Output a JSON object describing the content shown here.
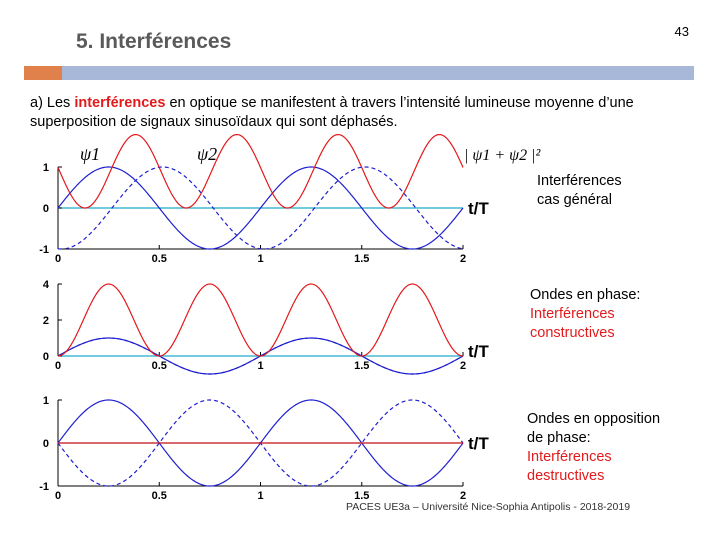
{
  "page_number": "43",
  "title": "5.   Interférences",
  "intro": {
    "prefix": "a)  Les ",
    "highlight": "interférences",
    "rest": " en optique se manifestent à travers l’intensité lumineuse moyenne d’une superposition de signaux sinusoïdaux qui sont déphasés."
  },
  "colors": {
    "wave": "#1f1fd0",
    "intensity": "#e31a1c",
    "zero_line": "#22aacc",
    "title_bar": "#a8b8d8",
    "title_accent": "#e0804a"
  },
  "chart_data": [
    {
      "type": "line",
      "x_label": "t/T",
      "xlim": [
        0,
        2
      ],
      "ylim": [
        -1,
        1
      ],
      "x_ticks": [
        "0",
        "0.5",
        "1",
        "1.5",
        "2"
      ],
      "y_ticks": [
        "-1",
        "0",
        "1"
      ],
      "series": [
        {
          "name": "ψ1",
          "formula": "sin(2πx)",
          "color": "#1f1fd0",
          "style": "solid"
        },
        {
          "name": "ψ2",
          "formula": "sin(2πx - 1.6π/3)",
          "color": "#1f1fd0",
          "style": "dashed"
        },
        {
          "name": "|ψ1+ψ2|²",
          "formula": "(sin(2πx)+sin(2πx-1.6π/3))^2",
          "color": "#e31a1c",
          "style": "solid"
        }
      ],
      "annotations": [
        "ψ1",
        "ψ2",
        "| ψ1 + ψ2 |²"
      ],
      "caption_lines": [
        "Interférences",
        "cas général"
      ]
    },
    {
      "type": "line",
      "x_label": "t/T",
      "xlim": [
        0,
        2
      ],
      "ylim": [
        0,
        4
      ],
      "x_ticks": [
        "0",
        "0.5",
        "1",
        "1.5",
        "2"
      ],
      "y_ticks": [
        "0",
        "2",
        "4"
      ],
      "series": [
        {
          "name": "ψ1",
          "formula": "sin(2πx)",
          "color": "#1f1fd0",
          "style": "solid"
        },
        {
          "name": "ψ2",
          "formula": "sin(2πx)",
          "color": "#1f1fd0",
          "style": "dashed"
        },
        {
          "name": "|ψ1+ψ2|²",
          "formula": "(2 sin(2πx))^2",
          "color": "#e31a1c",
          "style": "solid"
        }
      ],
      "caption_lines": [
        "Ondes en phase:"
      ],
      "caption_red_lines": [
        "Interférences",
        "constructives"
      ]
    },
    {
      "type": "line",
      "x_label": "t/T",
      "xlim": [
        0,
        2
      ],
      "ylim": [
        -1,
        1
      ],
      "x_ticks": [
        "0",
        "0.5",
        "1",
        "1.5",
        "2"
      ],
      "y_ticks": [
        "-1",
        "0",
        "1"
      ],
      "series": [
        {
          "name": "ψ1",
          "formula": "sin(2πx)",
          "color": "#1f1fd0",
          "style": "solid"
        },
        {
          "name": "ψ2",
          "formula": "-sin(2πx)",
          "color": "#1f1fd0",
          "style": "dashed"
        },
        {
          "name": "|ψ1+ψ2|²",
          "formula": "0",
          "color": "#e31a1c",
          "style": "solid"
        }
      ],
      "caption_lines": [
        "Ondes en opposition",
        "de phase:"
      ],
      "caption_red_lines": [
        "Interférences",
        "destructives"
      ]
    }
  ],
  "footer": "PACES UE3a – Université Nice-Sophia Antipolis - 2018-2019"
}
